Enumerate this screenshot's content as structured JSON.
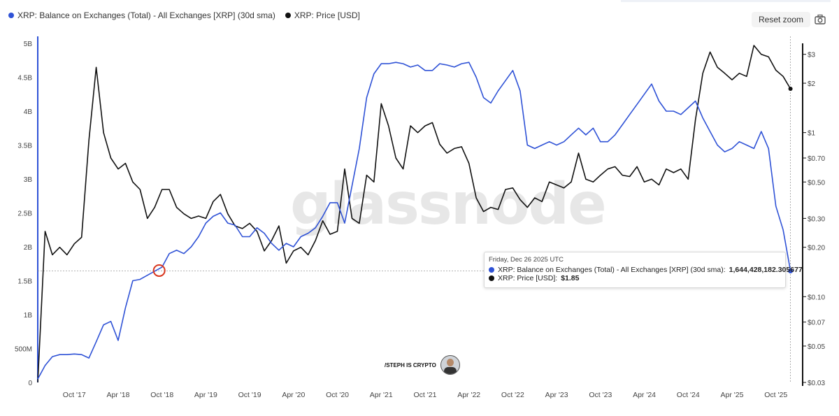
{
  "legend": {
    "series1_label": "XRP: Balance on Exchanges (Total) - All Exchanges [XRP] (30d sma)",
    "series2_label": "XRP: Price [USD]"
  },
  "controls": {
    "reset_zoom_label": "Reset zoom",
    "camera_icon": "camera-icon"
  },
  "watermark": "glassnode",
  "credit": {
    "text": "/STEPH IS CRYPTO"
  },
  "tooltip": {
    "date": "Friday, Dec 26 2025 UTC",
    "series1_label": "XRP: Balance on Exchanges (Total) - All Exchanges [XRP] (30d sma):",
    "series1_value": "1,644,428,182.305677",
    "series2_label": "XRP: Price [USD]:",
    "series2_value": "$1.85"
  },
  "colors": {
    "balance": "#2f52d6",
    "price": "#111111",
    "highlight": "#d9361e"
  },
  "chart_data": {
    "type": "line",
    "x_ticks": [
      "Oct '17",
      "Apr '18",
      "Oct '18",
      "Apr '19",
      "Oct '19",
      "Apr '20",
      "Oct '20",
      "Apr '21",
      "Oct '21",
      "Apr '22",
      "Oct '22",
      "Apr '23",
      "Oct '23",
      "Apr '24",
      "Oct '24",
      "Apr '25",
      "Oct '25"
    ],
    "y_left_ticks": [
      "0",
      "500M",
      "1B",
      "1.5B",
      "2B",
      "2.5B",
      "3B",
      "3.5B",
      "4B",
      "4.5B",
      "5B"
    ],
    "y_left_range": [
      0,
      5000000000
    ],
    "y_right_ticks": [
      "$0.03",
      "$0.05",
      "$0.07",
      "$0.10",
      "$0.20",
      "$0.30",
      "$0.50",
      "$0.70",
      "$1",
      "$2",
      "$3"
    ],
    "y_right_range": [
      0.03,
      3.5
    ],
    "y_right_scale": "log",
    "highlight_point": {
      "x": "2018-10",
      "y": 1650000000
    },
    "series": [
      {
        "name": "XRP: Balance on Exchanges (Total) - All Exchanges [XRP] (30d sma)",
        "axis": "left",
        "points": [
          [
            "2017-05",
            50000000
          ],
          [
            "2017-06",
            250000000
          ],
          [
            "2017-07",
            380000000
          ],
          [
            "2017-08",
            410000000
          ],
          [
            "2017-09",
            410000000
          ],
          [
            "2017-10",
            420000000
          ],
          [
            "2017-11",
            410000000
          ],
          [
            "2017-12",
            360000000
          ],
          [
            "2018-01",
            600000000
          ],
          [
            "2018-02",
            850000000
          ],
          [
            "2018-03",
            900000000
          ],
          [
            "2018-04",
            620000000
          ],
          [
            "2018-05",
            1100000000
          ],
          [
            "2018-06",
            1500000000
          ],
          [
            "2018-07",
            1520000000
          ],
          [
            "2018-08",
            1580000000
          ],
          [
            "2018-09",
            1640000000
          ],
          [
            "2018-10",
            1700000000
          ],
          [
            "2018-11",
            1900000000
          ],
          [
            "2018-12",
            1950000000
          ],
          [
            "2019-01",
            1900000000
          ],
          [
            "2019-02",
            2000000000
          ],
          [
            "2019-03",
            2150000000
          ],
          [
            "2019-04",
            2350000000
          ],
          [
            "2019-05",
            2450000000
          ],
          [
            "2019-06",
            2500000000
          ],
          [
            "2019-07",
            2350000000
          ],
          [
            "2019-08",
            2320000000
          ],
          [
            "2019-09",
            2150000000
          ],
          [
            "2019-10",
            2150000000
          ],
          [
            "2019-11",
            2280000000
          ],
          [
            "2019-12",
            2200000000
          ],
          [
            "2020-01",
            2050000000
          ],
          [
            "2020-02",
            1950000000
          ],
          [
            "2020-03",
            2050000000
          ],
          [
            "2020-04",
            2000000000
          ],
          [
            "2020-05",
            2150000000
          ],
          [
            "2020-06",
            2200000000
          ],
          [
            "2020-07",
            2280000000
          ],
          [
            "2020-08",
            2450000000
          ],
          [
            "2020-09",
            2650000000
          ],
          [
            "2020-10",
            2650000000
          ],
          [
            "2020-11",
            2350000000
          ],
          [
            "2020-12",
            2900000000
          ],
          [
            "2021-01",
            3450000000
          ],
          [
            "2021-02",
            4200000000
          ],
          [
            "2021-03",
            4550000000
          ],
          [
            "2021-04",
            4700000000
          ],
          [
            "2021-05",
            4700000000
          ],
          [
            "2021-06",
            4720000000
          ],
          [
            "2021-07",
            4700000000
          ],
          [
            "2021-08",
            4650000000
          ],
          [
            "2021-09",
            4680000000
          ],
          [
            "2021-10",
            4600000000
          ],
          [
            "2021-11",
            4600000000
          ],
          [
            "2021-12",
            4700000000
          ],
          [
            "2022-01",
            4680000000
          ],
          [
            "2022-02",
            4650000000
          ],
          [
            "2022-03",
            4700000000
          ],
          [
            "2022-04",
            4720000000
          ],
          [
            "2022-05",
            4500000000
          ],
          [
            "2022-06",
            4200000000
          ],
          [
            "2022-07",
            4120000000
          ],
          [
            "2022-08",
            4300000000
          ],
          [
            "2022-09",
            4450000000
          ],
          [
            "2022-10",
            4600000000
          ],
          [
            "2022-11",
            4300000000
          ],
          [
            "2022-12",
            3500000000
          ],
          [
            "2023-01",
            3450000000
          ],
          [
            "2023-02",
            3500000000
          ],
          [
            "2023-03",
            3550000000
          ],
          [
            "2023-04",
            3500000000
          ],
          [
            "2023-05",
            3550000000
          ],
          [
            "2023-06",
            3650000000
          ],
          [
            "2023-07",
            3750000000
          ],
          [
            "2023-08",
            3650000000
          ],
          [
            "2023-09",
            3750000000
          ],
          [
            "2023-10",
            3550000000
          ],
          [
            "2023-11",
            3550000000
          ],
          [
            "2023-12",
            3650000000
          ],
          [
            "2024-01",
            3800000000
          ],
          [
            "2024-02",
            3950000000
          ],
          [
            "2024-03",
            4100000000
          ],
          [
            "2024-04",
            4250000000
          ],
          [
            "2024-05",
            4400000000
          ],
          [
            "2024-06",
            4150000000
          ],
          [
            "2024-07",
            4000000000
          ],
          [
            "2024-08",
            4000000000
          ],
          [
            "2024-09",
            3950000000
          ],
          [
            "2024-10",
            4050000000
          ],
          [
            "2024-11",
            4150000000
          ],
          [
            "2024-12",
            3900000000
          ],
          [
            "2025-01",
            3700000000
          ],
          [
            "2025-02",
            3500000000
          ],
          [
            "2025-03",
            3400000000
          ],
          [
            "2025-04",
            3450000000
          ],
          [
            "2025-05",
            3550000000
          ],
          [
            "2025-06",
            3500000000
          ],
          [
            "2025-07",
            3450000000
          ],
          [
            "2025-08",
            3700000000
          ],
          [
            "2025-09",
            3450000000
          ],
          [
            "2025-10",
            2600000000
          ],
          [
            "2025-11",
            2250000000
          ],
          [
            "2025-12",
            1644428182
          ]
        ]
      },
      {
        "name": "XRP: Price [USD]",
        "axis": "right",
        "points": [
          [
            "2017-05",
            0.03
          ],
          [
            "2017-06",
            0.25
          ],
          [
            "2017-07",
            0.18
          ],
          [
            "2017-08",
            0.2
          ],
          [
            "2017-09",
            0.18
          ],
          [
            "2017-10",
            0.21
          ],
          [
            "2017-11",
            0.23
          ],
          [
            "2017-12",
            0.9
          ],
          [
            "2018-01",
            2.5
          ],
          [
            "2018-02",
            1.0
          ],
          [
            "2018-03",
            0.7
          ],
          [
            "2018-04",
            0.6
          ],
          [
            "2018-05",
            0.65
          ],
          [
            "2018-06",
            0.5
          ],
          [
            "2018-07",
            0.45
          ],
          [
            "2018-08",
            0.3
          ],
          [
            "2018-09",
            0.35
          ],
          [
            "2018-10",
            0.45
          ],
          [
            "2018-11",
            0.45
          ],
          [
            "2018-12",
            0.35
          ],
          [
            "2019-01",
            0.32
          ],
          [
            "2019-02",
            0.3
          ],
          [
            "2019-03",
            0.31
          ],
          [
            "2019-04",
            0.3
          ],
          [
            "2019-05",
            0.38
          ],
          [
            "2019-06",
            0.42
          ],
          [
            "2019-07",
            0.32
          ],
          [
            "2019-08",
            0.27
          ],
          [
            "2019-09",
            0.26
          ],
          [
            "2019-10",
            0.28
          ],
          [
            "2019-11",
            0.25
          ],
          [
            "2019-12",
            0.19
          ],
          [
            "2020-01",
            0.22
          ],
          [
            "2020-02",
            0.27
          ],
          [
            "2020-03",
            0.16
          ],
          [
            "2020-04",
            0.19
          ],
          [
            "2020-05",
            0.2
          ],
          [
            "2020-06",
            0.18
          ],
          [
            "2020-07",
            0.22
          ],
          [
            "2020-08",
            0.29
          ],
          [
            "2020-09",
            0.24
          ],
          [
            "2020-10",
            0.25
          ],
          [
            "2020-11",
            0.6
          ],
          [
            "2020-12",
            0.3
          ],
          [
            "2021-01",
            0.28
          ],
          [
            "2021-02",
            0.55
          ],
          [
            "2021-03",
            0.5
          ],
          [
            "2021-04",
            1.5
          ],
          [
            "2021-05",
            1.1
          ],
          [
            "2021-06",
            0.7
          ],
          [
            "2021-07",
            0.6
          ],
          [
            "2021-08",
            1.1
          ],
          [
            "2021-09",
            1.0
          ],
          [
            "2021-10",
            1.1
          ],
          [
            "2021-11",
            1.15
          ],
          [
            "2021-12",
            0.85
          ],
          [
            "2022-01",
            0.75
          ],
          [
            "2022-02",
            0.8
          ],
          [
            "2022-03",
            0.82
          ],
          [
            "2022-04",
            0.65
          ],
          [
            "2022-05",
            0.4
          ],
          [
            "2022-06",
            0.33
          ],
          [
            "2022-07",
            0.35
          ],
          [
            "2022-08",
            0.34
          ],
          [
            "2022-09",
            0.45
          ],
          [
            "2022-10",
            0.46
          ],
          [
            "2022-11",
            0.39
          ],
          [
            "2022-12",
            0.35
          ],
          [
            "2023-01",
            0.4
          ],
          [
            "2023-02",
            0.38
          ],
          [
            "2023-03",
            0.5
          ],
          [
            "2023-04",
            0.48
          ],
          [
            "2023-05",
            0.46
          ],
          [
            "2023-06",
            0.5
          ],
          [
            "2023-07",
            0.75
          ],
          [
            "2023-08",
            0.52
          ],
          [
            "2023-09",
            0.5
          ],
          [
            "2023-10",
            0.55
          ],
          [
            "2023-11",
            0.6
          ],
          [
            "2023-12",
            0.62
          ],
          [
            "2024-01",
            0.55
          ],
          [
            "2024-02",
            0.54
          ],
          [
            "2024-03",
            0.62
          ],
          [
            "2024-04",
            0.5
          ],
          [
            "2024-05",
            0.52
          ],
          [
            "2024-06",
            0.48
          ],
          [
            "2024-07",
            0.6
          ],
          [
            "2024-08",
            0.57
          ],
          [
            "2024-09",
            0.6
          ],
          [
            "2024-10",
            0.52
          ],
          [
            "2024-11",
            1.2
          ],
          [
            "2024-12",
            2.3
          ],
          [
            "2025-01",
            3.1
          ],
          [
            "2025-02",
            2.5
          ],
          [
            "2025-03",
            2.3
          ],
          [
            "2025-04",
            2.1
          ],
          [
            "2025-05",
            2.3
          ],
          [
            "2025-06",
            2.2
          ],
          [
            "2025-07",
            3.4
          ],
          [
            "2025-08",
            3.0
          ],
          [
            "2025-09",
            2.9
          ],
          [
            "2025-10",
            2.4
          ],
          [
            "2025-11",
            2.2
          ],
          [
            "2025-12",
            1.85
          ]
        ]
      }
    ]
  }
}
